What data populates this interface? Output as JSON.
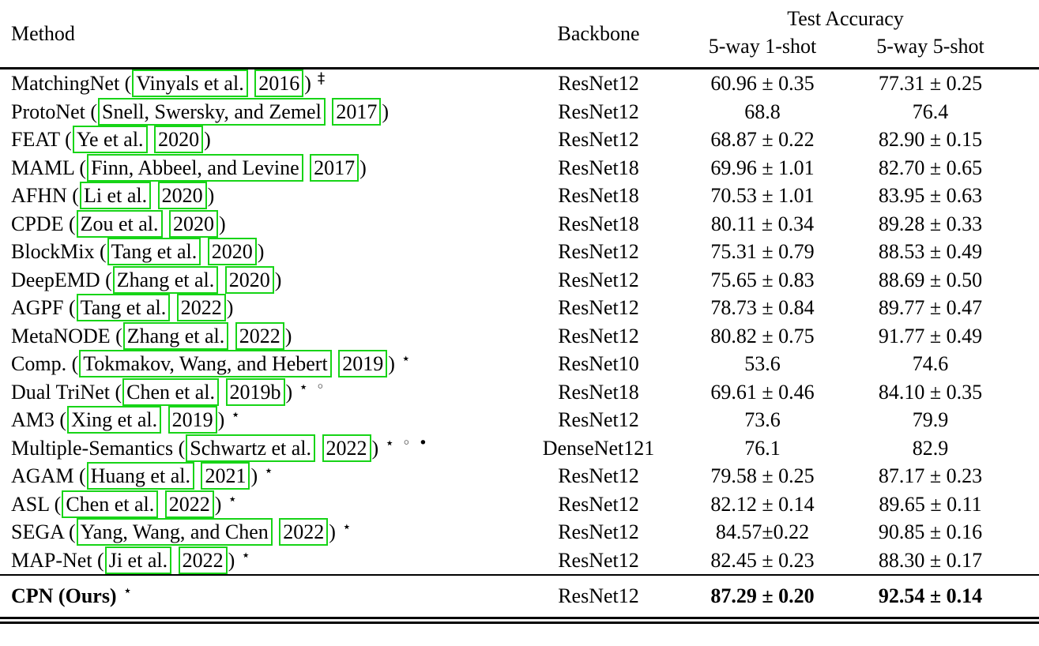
{
  "table": {
    "link_box_color": "#17d417",
    "header": {
      "method": "Method",
      "backbone": "Backbone",
      "test_accuracy": "Test Accuracy",
      "col1": "5-way 1-shot",
      "col2": "5-way 5-shot"
    },
    "rows": [
      {
        "method": [
          {
            "t": "MatchingNet (",
            "box": false
          },
          {
            "t": "Vinyals et al.",
            "box": true
          },
          {
            "t": " ",
            "box": false
          },
          {
            "t": "2016",
            "box": true
          },
          {
            "t": ")",
            "box": false
          }
        ],
        "marks": "‡",
        "backbone": "ResNet12",
        "acc1": "60.96 ± 0.35",
        "acc5": "77.31 ± 0.25",
        "bold": false,
        "final": false
      },
      {
        "method": [
          {
            "t": "ProtoNet (",
            "box": false
          },
          {
            "t": "Snell, Swersky, and Zemel",
            "box": true
          },
          {
            "t": " ",
            "box": false
          },
          {
            "t": "2017",
            "box": true
          },
          {
            "t": ")",
            "box": false
          }
        ],
        "marks": "",
        "backbone": "ResNet12",
        "acc1": "68.8",
        "acc5": "76.4",
        "bold": false,
        "final": false
      },
      {
        "method": [
          {
            "t": "FEAT (",
            "box": false
          },
          {
            "t": "Ye et al.",
            "box": true
          },
          {
            "t": " ",
            "box": false
          },
          {
            "t": "2020",
            "box": true
          },
          {
            "t": ")",
            "box": false
          }
        ],
        "marks": "",
        "backbone": "ResNet12",
        "acc1": "68.87 ± 0.22",
        "acc5": "82.90 ± 0.15",
        "bold": false,
        "final": false
      },
      {
        "method": [
          {
            "t": "MAML (",
            "box": false
          },
          {
            "t": "Finn, Abbeel, and Levine",
            "box": true
          },
          {
            "t": " ",
            "box": false
          },
          {
            "t": "2017",
            "box": true
          },
          {
            "t": ")",
            "box": false
          }
        ],
        "marks": "",
        "backbone": "ResNet18",
        "acc1": "69.96 ± 1.01",
        "acc5": "82.70 ± 0.65",
        "bold": false,
        "final": false
      },
      {
        "method": [
          {
            "t": "AFHN  (",
            "box": false
          },
          {
            "t": "Li et al.",
            "box": true
          },
          {
            "t": " ",
            "box": false
          },
          {
            "t": "2020",
            "box": true
          },
          {
            "t": ")",
            "box": false
          }
        ],
        "marks": "",
        "backbone": "ResNet18",
        "acc1": "70.53 ± 1.01",
        "acc5": "83.95 ± 0.63",
        "bold": false,
        "final": false
      },
      {
        "method": [
          {
            "t": "CPDE (",
            "box": false
          },
          {
            "t": "Zou et al.",
            "box": true
          },
          {
            "t": " ",
            "box": false
          },
          {
            "t": "2020",
            "box": true
          },
          {
            "t": ")",
            "box": false
          }
        ],
        "marks": "",
        "backbone": "ResNet18",
        "acc1": "80.11 ± 0.34",
        "acc5": "89.28 ± 0.33",
        "bold": false,
        "final": false
      },
      {
        "method": [
          {
            "t": "BlockMix (",
            "box": false
          },
          {
            "t": "Tang et al.",
            "box": true
          },
          {
            "t": " ",
            "box": false
          },
          {
            "t": "2020",
            "box": true
          },
          {
            "t": ")",
            "box": false
          }
        ],
        "marks": "",
        "backbone": "ResNet12",
        "acc1": "75.31 ± 0.79",
        "acc5": "88.53 ± 0.49",
        "bold": false,
        "final": false
      },
      {
        "method": [
          {
            "t": "DeepEMD (",
            "box": false
          },
          {
            "t": "Zhang et al.",
            "box": true
          },
          {
            "t": " ",
            "box": false
          },
          {
            "t": "2020",
            "box": true
          },
          {
            "t": ")",
            "box": false
          }
        ],
        "marks": "",
        "backbone": "ResNet12",
        "acc1": "75.65 ± 0.83",
        "acc5": "88.69 ± 0.50",
        "bold": false,
        "final": false
      },
      {
        "method": [
          {
            "t": "AGPF (",
            "box": false
          },
          {
            "t": "Tang et al.",
            "box": true
          },
          {
            "t": " ",
            "box": false
          },
          {
            "t": "2022",
            "box": true
          },
          {
            "t": ")",
            "box": false
          }
        ],
        "marks": "",
        "backbone": "ResNet12",
        "acc1": "78.73 ± 0.84",
        "acc5": "89.77 ± 0.47",
        "bold": false,
        "final": false
      },
      {
        "method": [
          {
            "t": "MetaNODE (",
            "box": false
          },
          {
            "t": "Zhang et al.",
            "box": true
          },
          {
            "t": " ",
            "box": false
          },
          {
            "t": "2022",
            "box": true
          },
          {
            "t": ")",
            "box": false
          }
        ],
        "marks": "",
        "backbone": "ResNet12",
        "acc1": "80.82 ± 0.75",
        "acc5": "91.77 ± 0.49",
        "bold": false,
        "final": false
      },
      {
        "method": [
          {
            "t": "Comp. (",
            "box": false
          },
          {
            "t": "Tokmakov, Wang, and Hebert",
            "box": true
          },
          {
            "t": " ",
            "box": false
          },
          {
            "t": "2019",
            "box": true
          },
          {
            "t": ")",
            "box": false
          }
        ],
        "marks": "⋆",
        "backbone": "ResNet10",
        "acc1": "53.6",
        "acc5": "74.6",
        "bold": false,
        "final": false
      },
      {
        "method": [
          {
            "t": "Dual TriNet (",
            "box": false
          },
          {
            "t": "Chen et al.",
            "box": true
          },
          {
            "t": " ",
            "box": false
          },
          {
            "t": "2019b",
            "box": true
          },
          {
            "t": ")",
            "box": false
          }
        ],
        "marks": "⋆ ◦",
        "backbone": "ResNet18",
        "acc1": "69.61 ± 0.46",
        "acc5": "84.10 ± 0.35",
        "bold": false,
        "final": false
      },
      {
        "method": [
          {
            "t": "AM3 (",
            "box": false
          },
          {
            "t": "Xing et al.",
            "box": true
          },
          {
            "t": " ",
            "box": false
          },
          {
            "t": "2019",
            "box": true
          },
          {
            "t": ")",
            "box": false
          }
        ],
        "marks": "⋆",
        "backbone": "ResNet12",
        "acc1": "73.6",
        "acc5": "79.9",
        "bold": false,
        "final": false
      },
      {
        "method": [
          {
            "t": "Multiple-Semantics (",
            "box": false
          },
          {
            "t": "Schwartz et al.",
            "box": true
          },
          {
            "t": " ",
            "box": false
          },
          {
            "t": "2022",
            "box": true
          },
          {
            "t": ")",
            "box": false
          }
        ],
        "marks": "⋆ ◦ •",
        "backbone": "DenseNet121",
        "acc1": "76.1",
        "acc5": "82.9",
        "bold": false,
        "final": false
      },
      {
        "method": [
          {
            "t": "AGAM (",
            "box": false
          },
          {
            "t": "Huang et al.",
            "box": true
          },
          {
            "t": " ",
            "box": false
          },
          {
            "t": "2021",
            "box": true
          },
          {
            "t": ")",
            "box": false
          }
        ],
        "marks": "⋆",
        "backbone": "ResNet12",
        "acc1": "79.58 ± 0.25",
        "acc5": "87.17 ± 0.23",
        "bold": false,
        "final": false
      },
      {
        "method": [
          {
            "t": "ASL (",
            "box": false
          },
          {
            "t": "Chen et al.",
            "box": true
          },
          {
            "t": " ",
            "box": false
          },
          {
            "t": "2022",
            "box": true
          },
          {
            "t": ")",
            "box": false
          }
        ],
        "marks": "⋆",
        "backbone": "ResNet12",
        "acc1": "82.12 ± 0.14",
        "acc5": "89.65 ± 0.11",
        "bold": false,
        "final": false
      },
      {
        "method": [
          {
            "t": "SEGA (",
            "box": false
          },
          {
            "t": "Yang, Wang, and Chen",
            "box": true
          },
          {
            "t": " ",
            "box": false
          },
          {
            "t": "2022",
            "box": true
          },
          {
            "t": ")",
            "box": false
          }
        ],
        "marks": "⋆",
        "backbone": "ResNet12",
        "acc1": "84.57±0.22",
        "acc5": "90.85 ± 0.16",
        "bold": false,
        "final": false
      },
      {
        "method": [
          {
            "t": "MAP-Net (",
            "box": false
          },
          {
            "t": "Ji et al.",
            "box": true
          },
          {
            "t": " ",
            "box": false
          },
          {
            "t": "2022",
            "box": true
          },
          {
            "t": ")",
            "box": false
          }
        ],
        "marks": "⋆",
        "backbone": "ResNet12",
        "acc1": "82.45 ± 0.23",
        "acc5": "88.30 ± 0.17",
        "bold": false,
        "final": false
      },
      {
        "method": [
          {
            "t": "CPN (Ours)",
            "box": false
          }
        ],
        "marks": "⋆",
        "backbone": "ResNet12",
        "acc1": "87.29 ± 0.20",
        "acc5": "92.54 ± 0.14",
        "bold": true,
        "final": true
      }
    ]
  }
}
